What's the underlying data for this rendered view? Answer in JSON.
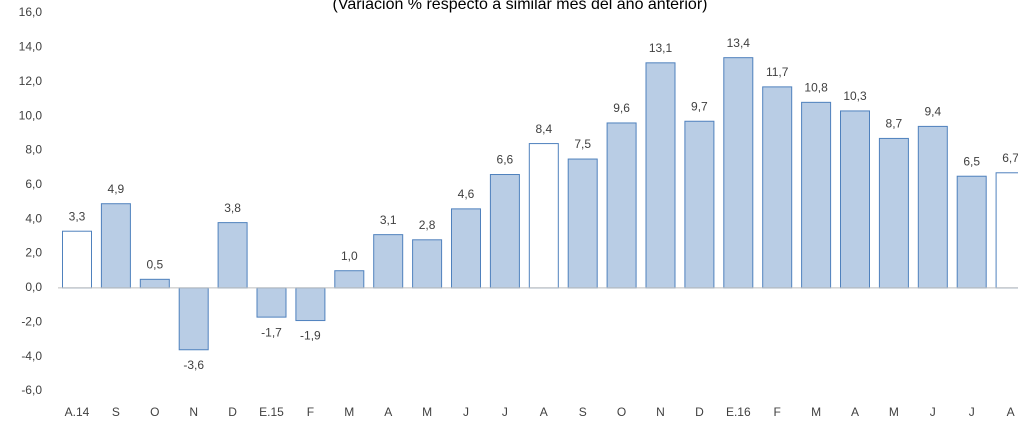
{
  "chart_data": {
    "type": "bar",
    "subtitle": "(Variación % respecto a similar mes del año anterior)",
    "categories": [
      "A.14",
      "S",
      "O",
      "N",
      "D",
      "E.15",
      "F",
      "M",
      "A",
      "M",
      "J",
      "J",
      "A",
      "S",
      "O",
      "N",
      "D",
      "E.16",
      "F",
      "M",
      "A",
      "M",
      "J",
      "J",
      "A"
    ],
    "values": [
      3.3,
      4.9,
      0.5,
      -3.6,
      3.8,
      -1.7,
      -1.9,
      1.0,
      3.1,
      2.8,
      4.6,
      6.6,
      8.4,
      7.5,
      9.6,
      13.1,
      9.7,
      13.4,
      11.7,
      10.8,
      10.3,
      8.7,
      9.4,
      6.5,
      6.7
    ],
    "value_labels": [
      "3,3",
      "4,9",
      "0,5",
      "-3,6",
      "3,8",
      "-1,7",
      "-1,9",
      "1,0",
      "3,1",
      "2,8",
      "4,6",
      "6,6",
      "8,4",
      "7,5",
      "9,6",
      "13,1",
      "9,7",
      "13,4",
      "11,7",
      "10,8",
      "10,3",
      "8,7",
      "9,4",
      "6,5",
      "6,7"
    ],
    "colors": [
      "#ffffff",
      "#b9cde5",
      "#b9cde5",
      "#b9cde5",
      "#b9cde5",
      "#b9cde5",
      "#b9cde5",
      "#b9cde5",
      "#b9cde5",
      "#b9cde5",
      "#b9cde5",
      "#b9cde5",
      "#ffffff",
      "#b9cde5",
      "#b9cde5",
      "#b9cde5",
      "#b9cde5",
      "#b9cde5",
      "#b9cde5",
      "#b9cde5",
      "#b9cde5",
      "#b9cde5",
      "#b9cde5",
      "#b9cde5",
      "#ffffff"
    ],
    "edge_color": "#4f81bd",
    "ylim": [
      -6,
      16
    ],
    "yticks": [
      {
        "value": -6,
        "label": "-6,0"
      },
      {
        "value": -4,
        "label": "-4,0"
      },
      {
        "value": -2,
        "label": "-2,0"
      },
      {
        "value": 0,
        "label": "0,0"
      },
      {
        "value": 2,
        "label": "2,0"
      },
      {
        "value": 4,
        "label": "4,0"
      },
      {
        "value": 6,
        "label": "6,0"
      },
      {
        "value": 8,
        "label": "8,0"
      },
      {
        "value": 10,
        "label": "10,0"
      },
      {
        "value": 12,
        "label": "12,0"
      },
      {
        "value": 14,
        "label": "14,0"
      },
      {
        "value": 16,
        "label": "16,0"
      }
    ],
    "grid": false
  }
}
